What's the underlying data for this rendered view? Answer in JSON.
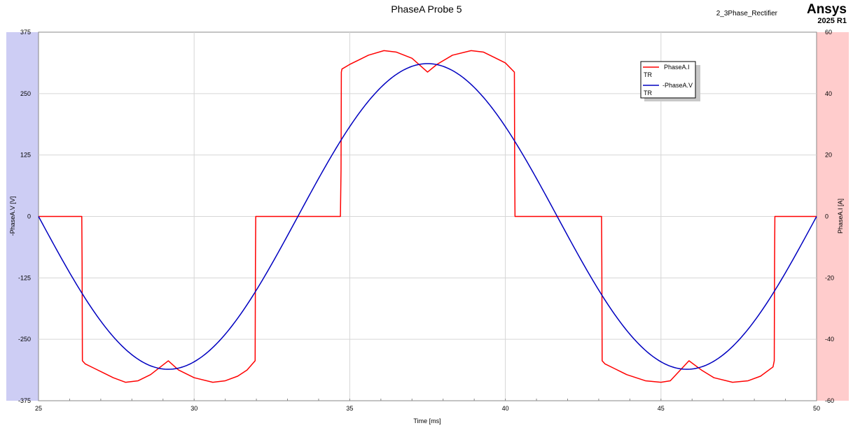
{
  "header": {
    "title": "PhaseA Probe 5",
    "project": "2_3Phase_Rectifier",
    "brand": "Ansys",
    "version": "2025 R1"
  },
  "chart_data": {
    "type": "line",
    "title": "PhaseA Probe 5",
    "xlabel": "Time [ms]",
    "ylabel_left": "-PhaseA.V [V]",
    "ylabel_right": "PhaseA.I [A]",
    "xlim": [
      25,
      50
    ],
    "ylim_left": [
      -375,
      375
    ],
    "ylim_right": [
      -60,
      60
    ],
    "x_ticks": [
      25,
      30,
      35,
      40,
      45,
      50
    ],
    "y_ticks_left": [
      375,
      250,
      125,
      0,
      -125,
      -250,
      -375
    ],
    "y_ticks_right": [
      60,
      40,
      20,
      0,
      -20,
      -40,
      -60
    ],
    "grid": true,
    "legend": "top-right",
    "colors": {
      "current": "#ff0000",
      "voltage": "#0000c0",
      "left_band": "#cdcdf4",
      "right_band": "#ffcccc"
    },
    "series": [
      {
        "name": "PhaseA.I",
        "sub": "TR",
        "axis": "right",
        "color": "#ff0000",
        "x": [
          25.0,
          26.39,
          26.4,
          26.41,
          26.5,
          26.8,
          27.1,
          27.4,
          27.8,
          28.2,
          28.6,
          29.17,
          29.5,
          30.0,
          30.6,
          31.0,
          31.4,
          31.7,
          31.96,
          31.97,
          31.98,
          32.0,
          32.5,
          33.0,
          33.5,
          34.0,
          34.7,
          34.72,
          34.73,
          34.75,
          35.0,
          35.3,
          35.6,
          36.1,
          36.5,
          37.0,
          37.5,
          37.8,
          38.3,
          38.9,
          39.3,
          39.7,
          40.0,
          40.29,
          40.3,
          40.31,
          40.35,
          41.0,
          42.0,
          43.0,
          43.09,
          43.1,
          43.11,
          43.2,
          43.5,
          43.9,
          44.5,
          45.0,
          45.3,
          45.9,
          46.3,
          46.7,
          47.3,
          47.8,
          48.2,
          48.6,
          48.64,
          48.65,
          48.66,
          48.7,
          49.0,
          49.5,
          50.0
        ],
        "y": [
          0,
          0,
          -15,
          -47,
          -48,
          -49.5,
          -51,
          -52.5,
          -54,
          -53.5,
          -51.5,
          -47,
          -50,
          -52.5,
          -54,
          -53.5,
          -52,
          -50,
          -47,
          -15,
          0,
          0,
          0,
          0,
          0,
          0,
          0,
          15,
          47,
          48,
          49.5,
          51,
          52.5,
          54,
          53.5,
          51.5,
          47,
          49.5,
          52.5,
          54,
          53.5,
          51.5,
          50,
          47,
          15,
          0,
          0,
          0,
          0,
          0,
          0,
          -15,
          -47,
          -48,
          -49.5,
          -51.5,
          -53.5,
          -54,
          -53.5,
          -47,
          -50,
          -52.5,
          -54,
          -53.5,
          -52,
          -49,
          -47,
          -15,
          0,
          0,
          0,
          0,
          0
        ]
      },
      {
        "name": "-PhaseA.V",
        "sub": "TR",
        "axis": "left",
        "color": "#0000c0",
        "amplitude": 311,
        "period_ms": 16.6667,
        "x_start": 25,
        "x_end": 50,
        "phase_zero_ms": 25,
        "sign": -1
      }
    ]
  }
}
